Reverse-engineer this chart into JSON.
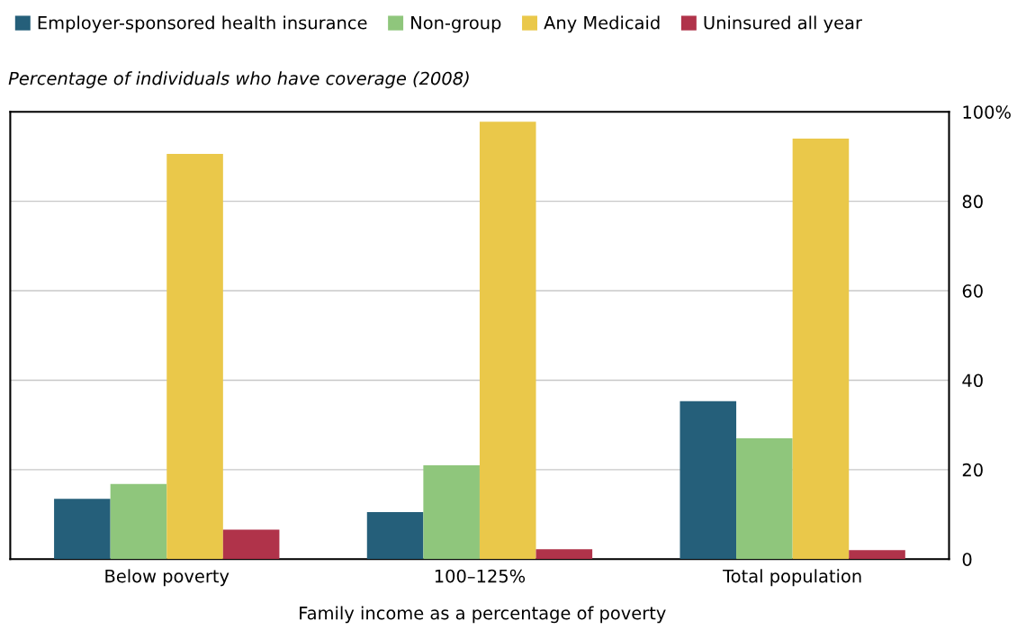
{
  "chart_data": {
    "type": "bar",
    "ylabel": "Percentage of individuals who have coverage (2008)",
    "xlabel": "Family income as a percentage of poverty",
    "categories": [
      "Below poverty",
      "100–125%",
      "Total population"
    ],
    "series": [
      {
        "name": "Employer-sponsored health insurance",
        "color": "#255f7a",
        "values": [
          13.5,
          10.5,
          35.3
        ]
      },
      {
        "name": "Non-group",
        "color": "#8fc67c",
        "values": [
          16.8,
          21,
          27
        ]
      },
      {
        "name": "Any Medicaid",
        "color": "#eac84a",
        "values": [
          90.6,
          97.8,
          94
        ]
      },
      {
        "name": "Uninsured all year",
        "color": "#b0334a",
        "values": [
          6.6,
          2.2,
          2
        ]
      }
    ],
    "ylim": [
      0,
      100
    ],
    "yticks": [
      0,
      20,
      40,
      60,
      80,
      {
        "value": 100,
        "label": "100%"
      }
    ],
    "grid": "y",
    "legend": "top left"
  }
}
